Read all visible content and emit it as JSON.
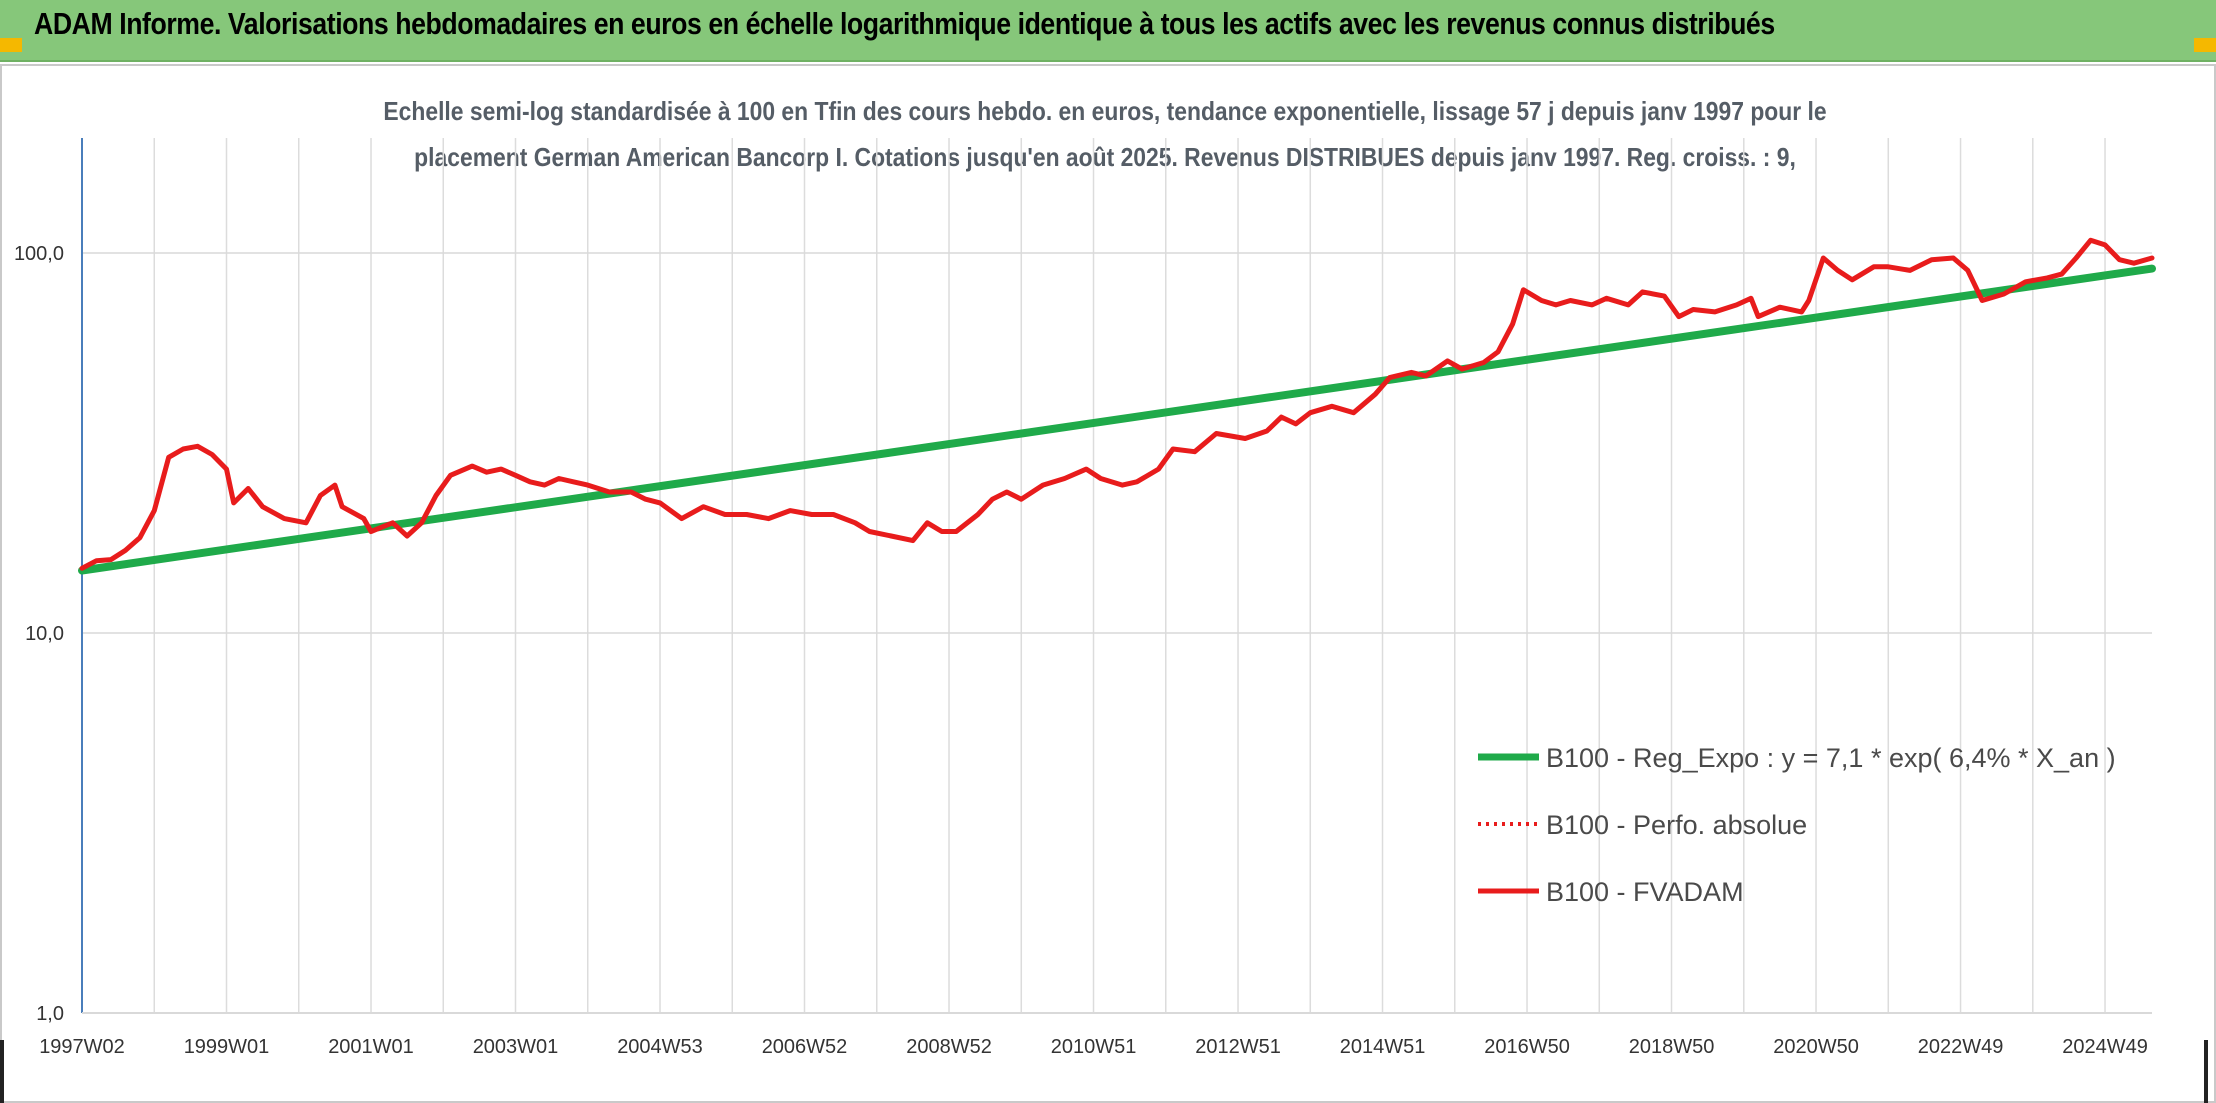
{
  "header": {
    "title": "ADAM Informe. Valorisations hebdomadaires en euros en échelle logarithmique identique à tous les actifs avec les revenus connus distribués",
    "background": "#86c77a",
    "corner_color": "#f5b800"
  },
  "chart_data": {
    "type": "line",
    "title_line1": "Echelle semi-log standardisée à 100 en Tfin des cours hebdo. en euros, tendance exponentielle, lissage 57 j depuis janv 1997 pour le",
    "title_line2": "placement German American Bancorp I. Cotations jusqu'en août 2025. Revenus DISTRIBUES depuis janv 1997. Reg. croiss. : 9,",
    "y_scale": "log",
    "ylim": [
      1,
      200
    ],
    "xlim": [
      1997.0,
      2025.65
    ],
    "grid": true,
    "legend_position": "bottom-right",
    "y_ticks": [
      {
        "value": 100,
        "label": "100,0"
      },
      {
        "value": 10,
        "label": "10,0"
      },
      {
        "value": 1,
        "label": "1,0"
      }
    ],
    "x_ticks": [
      {
        "value": 1997.0,
        "label": "1997W02"
      },
      {
        "value": 1999.0,
        "label": "1999W01"
      },
      {
        "value": 2001.0,
        "label": "2001W01"
      },
      {
        "value": 2003.0,
        "label": "2003W01"
      },
      {
        "value": 2005.0,
        "label": "2004W53"
      },
      {
        "value": 2007.0,
        "label": "2006W52"
      },
      {
        "value": 2009.0,
        "label": "2008W52"
      },
      {
        "value": 2011.0,
        "label": "2010W51"
      },
      {
        "value": 2013.0,
        "label": "2012W51"
      },
      {
        "value": 2015.0,
        "label": "2014W51"
      },
      {
        "value": 2017.0,
        "label": "2016W50"
      },
      {
        "value": 2019.0,
        "label": "2018W50"
      },
      {
        "value": 2021.0,
        "label": "2020W50"
      },
      {
        "value": 2023.0,
        "label": "2022W49"
      },
      {
        "value": 2025.0,
        "label": "2024W49"
      }
    ],
    "series": [
      {
        "name": "B100 - Reg_Expo : y = 7,1 * exp( 6,4% *  X_an )",
        "color": "#1faa4a",
        "style": "solid",
        "points": [
          [
            1997.0,
            14.6
          ],
          [
            2025.65,
            91.0
          ]
        ]
      },
      {
        "name": "B100 - Perfo. absolue",
        "color": "#e81c1c",
        "style": "dotted",
        "points": []
      },
      {
        "name": "B100 - FVADAM",
        "color": "#e81c1c",
        "style": "solid",
        "points": [
          [
            1997.0,
            14.8
          ],
          [
            1997.2,
            15.5
          ],
          [
            1997.4,
            15.6
          ],
          [
            1997.6,
            16.5
          ],
          [
            1997.8,
            17.8
          ],
          [
            1998.0,
            21.0
          ],
          [
            1998.2,
            29.0
          ],
          [
            1998.4,
            30.5
          ],
          [
            1998.6,
            31.0
          ],
          [
            1998.8,
            29.5
          ],
          [
            1999.0,
            27.0
          ],
          [
            1999.1,
            22.0
          ],
          [
            1999.3,
            24.0
          ],
          [
            1999.5,
            21.5
          ],
          [
            1999.8,
            20.0
          ],
          [
            2000.1,
            19.5
          ],
          [
            2000.3,
            23.0
          ],
          [
            2000.5,
            24.5
          ],
          [
            2000.6,
            21.5
          ],
          [
            2000.9,
            20.0
          ],
          [
            2001.0,
            18.5
          ],
          [
            2001.3,
            19.5
          ],
          [
            2001.5,
            18.0
          ],
          [
            2001.7,
            19.5
          ],
          [
            2001.9,
            23.0
          ],
          [
            2002.1,
            26.0
          ],
          [
            2002.4,
            27.5
          ],
          [
            2002.6,
            26.5
          ],
          [
            2002.8,
            27.0
          ],
          [
            2003.0,
            26.0
          ],
          [
            2003.2,
            25.0
          ],
          [
            2003.4,
            24.5
          ],
          [
            2003.6,
            25.5
          ],
          [
            2003.8,
            25.0
          ],
          [
            2004.0,
            24.5
          ],
          [
            2004.3,
            23.5
          ],
          [
            2004.6,
            23.5
          ],
          [
            2004.8,
            22.5
          ],
          [
            2005.0,
            22.0
          ],
          [
            2005.3,
            20.0
          ],
          [
            2005.6,
            21.5
          ],
          [
            2005.9,
            20.5
          ],
          [
            2006.2,
            20.5
          ],
          [
            2006.5,
            20.0
          ],
          [
            2006.8,
            21.0
          ],
          [
            2007.1,
            20.5
          ],
          [
            2007.4,
            20.5
          ],
          [
            2007.7,
            19.5
          ],
          [
            2007.9,
            18.5
          ],
          [
            2008.2,
            18.0
          ],
          [
            2008.5,
            17.5
          ],
          [
            2008.7,
            19.5
          ],
          [
            2008.9,
            18.5
          ],
          [
            2009.1,
            18.5
          ],
          [
            2009.4,
            20.5
          ],
          [
            2009.6,
            22.5
          ],
          [
            2009.8,
            23.5
          ],
          [
            2010.0,
            22.5
          ],
          [
            2010.3,
            24.5
          ],
          [
            2010.6,
            25.5
          ],
          [
            2010.9,
            27.0
          ],
          [
            2011.1,
            25.5
          ],
          [
            2011.4,
            24.5
          ],
          [
            2011.6,
            25.0
          ],
          [
            2011.9,
            27.0
          ],
          [
            2012.1,
            30.5
          ],
          [
            2012.4,
            30.0
          ],
          [
            2012.7,
            33.5
          ],
          [
            2012.9,
            33.0
          ],
          [
            2013.1,
            32.5
          ],
          [
            2013.4,
            34.0
          ],
          [
            2013.6,
            37.0
          ],
          [
            2013.8,
            35.5
          ],
          [
            2014.0,
            38.0
          ],
          [
            2014.3,
            39.5
          ],
          [
            2014.6,
            38.0
          ],
          [
            2014.9,
            42.5
          ],
          [
            2015.1,
            47.0
          ],
          [
            2015.4,
            48.5
          ],
          [
            2015.6,
            47.5
          ],
          [
            2015.9,
            52.0
          ],
          [
            2016.1,
            49.5
          ],
          [
            2016.4,
            51.5
          ],
          [
            2016.6,
            55.0
          ],
          [
            2016.8,
            65.0
          ],
          [
            2016.95,
            80.0
          ],
          [
            2017.2,
            75.0
          ],
          [
            2017.4,
            73.0
          ],
          [
            2017.6,
            75.0
          ],
          [
            2017.9,
            73.0
          ],
          [
            2018.1,
            76.0
          ],
          [
            2018.4,
            73.0
          ],
          [
            2018.6,
            79.0
          ],
          [
            2018.9,
            77.0
          ],
          [
            2019.1,
            68.0
          ],
          [
            2019.3,
            71.0
          ],
          [
            2019.6,
            70.0
          ],
          [
            2019.9,
            73.0
          ],
          [
            2020.1,
            76.0
          ],
          [
            2020.2,
            68.0
          ],
          [
            2020.5,
            72.0
          ],
          [
            2020.8,
            70.0
          ],
          [
            2020.9,
            75.0
          ],
          [
            2021.1,
            97.0
          ],
          [
            2021.3,
            90.0
          ],
          [
            2021.5,
            85.0
          ],
          [
            2021.8,
            92.0
          ],
          [
            2022.0,
            92.0
          ],
          [
            2022.3,
            90.0
          ],
          [
            2022.6,
            96.0
          ],
          [
            2022.9,
            97.0
          ],
          [
            2023.1,
            90.0
          ],
          [
            2023.3,
            75.0
          ],
          [
            2023.6,
            78.0
          ],
          [
            2023.9,
            84.0
          ],
          [
            2024.2,
            86.0
          ],
          [
            2024.4,
            88.0
          ],
          [
            2024.6,
            97.0
          ],
          [
            2024.8,
            108.0
          ],
          [
            2025.0,
            105.0
          ],
          [
            2025.2,
            96.0
          ],
          [
            2025.4,
            94.0
          ],
          [
            2025.65,
            97.0
          ]
        ]
      }
    ]
  }
}
